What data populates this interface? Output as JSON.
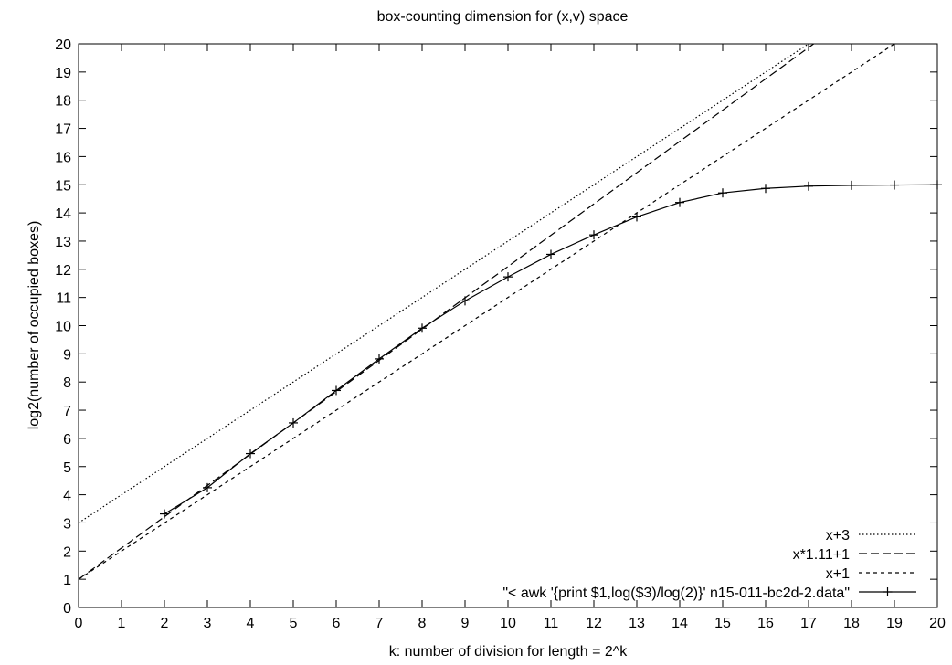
{
  "chart_data": {
    "type": "line",
    "title": "box-counting dimension for (x,v) space",
    "xlabel": "k: number of division for length = 2^k",
    "ylabel": "log2(number of occupied boxes)",
    "xlim": [
      0,
      20
    ],
    "ylim": [
      0,
      20
    ],
    "xticks": [
      "0",
      "1",
      "2",
      "3",
      "4",
      "5",
      "6",
      "7",
      "8",
      "9",
      "10",
      "11",
      "12",
      "13",
      "14",
      "15",
      "16",
      "17",
      "18",
      "19",
      "20"
    ],
    "yticks": [
      "0",
      "1",
      "2",
      "3",
      "4",
      "5",
      "6",
      "7",
      "8",
      "9",
      "10",
      "11",
      "12",
      "13",
      "14",
      "15",
      "16",
      "17",
      "18",
      "19",
      "20"
    ],
    "grid": false,
    "legend_position": "bottom-right",
    "series": [
      {
        "name": "x+3",
        "style": "dotted",
        "color": "#000000",
        "x": [
          0,
          17
        ],
        "y": [
          3,
          20
        ]
      },
      {
        "name": "x*1.11+1",
        "style": "long-dash",
        "color": "#000000",
        "x": [
          0,
          17.12
        ],
        "y": [
          1,
          20
        ]
      },
      {
        "name": "x+1",
        "style": "short-dash",
        "color": "#000000",
        "x": [
          0,
          19
        ],
        "y": [
          1,
          20
        ]
      },
      {
        "name": "\"< awk '{print $1,log($3)/log(2)}' n15-011-bc2d-2.data\"",
        "style": "linespoints",
        "color": "#000000",
        "x": [
          2,
          3,
          4,
          5,
          6,
          7,
          8,
          9,
          10,
          11,
          12,
          13,
          14,
          15,
          16,
          17,
          18,
          19,
          20
        ],
        "y": [
          3.32,
          4.25,
          5.46,
          6.55,
          7.7,
          8.82,
          9.91,
          10.88,
          11.73,
          12.53,
          13.22,
          13.86,
          14.37,
          14.71,
          14.87,
          14.95,
          14.98,
          14.99,
          15.0
        ]
      }
    ]
  }
}
